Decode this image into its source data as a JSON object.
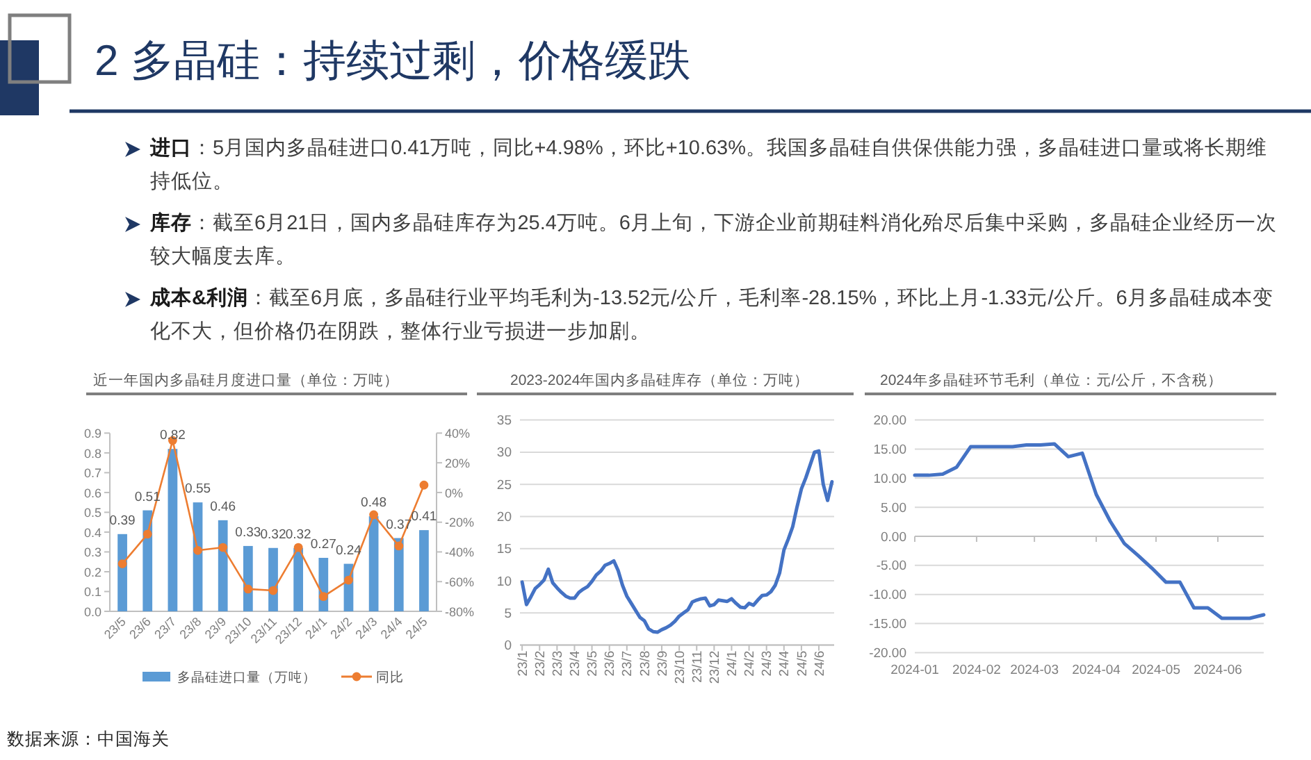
{
  "chart_data": [
    {
      "type": "other",
      "title": "2 多晶硅：持续过剩，价格缓跌",
      "annotations": [
        "进口：5月国内多晶硅进口0.41万吨，同比+4.98%，环比+10.63%。我国多晶硅自供保供能力强，多晶硅进口量或将长期维持低位。",
        "库存：截至6月21日，国内多晶硅库存为25.4万吨。6月上旬，下游企业前期硅料消化殆尽后集中采购，多晶硅企业经历一次较大幅度去库。",
        "成本&利润：截至6月底，多晶硅行业平均毛利为-13.52元/公斤，毛利率-28.15%，环比上月-1.33元/公斤。6月多晶硅成本变化不大，但价格仍在阴跌，整体行业亏损进一步加剧。"
      ]
    },
    {
      "type": "bar",
      "title": "近一年国内多晶硅月度进口量（单位：万吨）",
      "categories": [
        "23/5",
        "23/6",
        "23/7",
        "23/8",
        "23/9",
        "23/10",
        "23/11",
        "23/12",
        "24/1",
        "24/2",
        "24/3",
        "24/4",
        "24/5"
      ],
      "series": [
        {
          "name": "多晶硅进口量（万吨）",
          "color": "#5b9bd5",
          "values": [
            0.39,
            0.51,
            0.82,
            0.55,
            0.46,
            0.33,
            0.32,
            0.32,
            0.27,
            0.24,
            0.48,
            0.37,
            0.41
          ],
          "value_labels": [
            "0.39",
            "0.51",
            "0.82",
            "0.55",
            "0.46",
            "0.33",
            "0.32",
            "0.32",
            "0.27",
            "0.24",
            "0.48",
            "0.37",
            "0.41"
          ]
        },
        {
          "name": "同比",
          "type": "line",
          "axis": "y2",
          "color": "#ed7d31",
          "marker": "circle",
          "values": [
            -48,
            -28,
            35,
            -39,
            -37,
            -65,
            -66,
            -37,
            -70,
            -59,
            -15,
            -36,
            5
          ]
        }
      ],
      "ylim": [
        0,
        0.9
      ],
      "yticks": [
        {
          "value": 0,
          "label": "0.0"
        },
        0.1,
        0.2,
        0.3,
        0.4,
        0.5,
        0.6,
        0.7,
        0.8,
        0.9
      ],
      "y2lim": [
        -80,
        40
      ],
      "y2ticks": [
        {
          "value": -80,
          "label": "-80%"
        },
        {
          "value": -60,
          "label": "-60%"
        },
        {
          "value": -40,
          "label": "-40%"
        },
        {
          "value": -20,
          "label": "-20%"
        },
        {
          "value": 0,
          "label": "0%"
        },
        {
          "value": 20,
          "label": "20%"
        },
        {
          "value": 40,
          "label": "40%"
        }
      ],
      "legend": "bottom",
      "annotations": [
        "数据来源：中国海关"
      ]
    },
    {
      "type": "line",
      "title": "2023-2024年国内多晶硅库存（单位：万吨）",
      "categories": [
        "23/1",
        null,
        null,
        null,
        "23/2",
        null,
        null,
        null,
        "23/3",
        null,
        null,
        null,
        "23/4",
        null,
        null,
        null,
        "23/5",
        null,
        null,
        null,
        "23/6",
        null,
        null,
        null,
        "23/7",
        null,
        null,
        null,
        "23/8",
        null,
        null,
        null,
        "23/9",
        null,
        null,
        null,
        "23/10",
        null,
        null,
        null,
        "23/11",
        null,
        null,
        null,
        "23/12",
        null,
        null,
        null,
        "24/1",
        null,
        null,
        null,
        "24/2",
        null,
        null,
        null,
        "24/3",
        null,
        null,
        null,
        "24/4",
        null,
        null,
        null,
        "24/5",
        null,
        null,
        null,
        "24/6",
        null,
        null,
        null
      ],
      "color": "#4472c4",
      "values": [
        9.8,
        6.3,
        7.5,
        8.8,
        9.4,
        10.1,
        11.8,
        9.7,
        8.9,
        8.2,
        7.6,
        7.3,
        7.3,
        8.2,
        8.7,
        9.1,
        9.9,
        10.9,
        11.5,
        12.4,
        12.7,
        13.1,
        11.6,
        9.3,
        7.6,
        6.5,
        5.4,
        4.3,
        3.8,
        2.5,
        2.1,
        2.0,
        2.4,
        2.7,
        3.1,
        3.7,
        4.5,
        5.0,
        5.5,
        6.7,
        7.0,
        7.2,
        7.3,
        6.1,
        6.3,
        7.0,
        6.9,
        6.8,
        7.2,
        6.5,
        5.9,
        5.8,
        6.5,
        6.2,
        7.0,
        7.7,
        7.8,
        8.3,
        9.3,
        11.2,
        14.8,
        16.5,
        18.4,
        21.5,
        24.3,
        26.0,
        28.0,
        30.0,
        30.2,
        25.0,
        22.5,
        25.4
      ],
      "ylim": [
        0,
        35
      ],
      "yticks": [
        0,
        5,
        10,
        15,
        20,
        25,
        30,
        35
      ],
      "grid": "y"
    },
    {
      "type": "line",
      "title": "2024年多晶硅环节毛利（单位：元/公斤，不含税）",
      "x": [
        "2024-01-01",
        "2024-01-08",
        "2024-01-15",
        "2024-01-22",
        "2024-01-29",
        "2024-02-05",
        "2024-02-12",
        "2024-02-19",
        "2024-02-26",
        "2024-03-04",
        "2024-03-11",
        "2024-03-18",
        "2024-03-25",
        "2024-04-01",
        "2024-04-08",
        "2024-04-15",
        "2024-04-22",
        "2024-04-29",
        "2024-05-06",
        "2024-05-13",
        "2024-05-20",
        "2024-05-27",
        "2024-06-03",
        "2024-06-10",
        "2024-06-17",
        "2024-06-24"
      ],
      "color": "#4472c4",
      "values": [
        10.5,
        10.5,
        10.7,
        11.9,
        15.4,
        15.4,
        15.4,
        15.4,
        15.7,
        15.7,
        15.9,
        13.7,
        14.3,
        7.2,
        2.6,
        -1.2,
        -3.3,
        -5.5,
        -7.9,
        -7.9,
        -12.3,
        -12.3,
        -14.1,
        -14.1,
        -14.1,
        -13.5
      ],
      "xlim": [
        "2024-01-01",
        "2024-06-24"
      ],
      "xticks": [
        "2024-01",
        "2024-02",
        "2024-03",
        "2024-04",
        "2024-05",
        "2024-06"
      ],
      "ylim": [
        -20,
        20
      ],
      "yticks": [
        {
          "value": -20,
          "label": "-20.00"
        },
        {
          "value": -15,
          "label": "-15.00"
        },
        {
          "value": -10,
          "label": "-10.00"
        },
        {
          "value": -5,
          "label": "-5.00"
        },
        {
          "value": 0,
          "label": "0.00"
        },
        {
          "value": 5,
          "label": "5.00"
        },
        {
          "value": 10,
          "label": "10.00"
        },
        {
          "value": 15,
          "label": "15.00"
        },
        {
          "value": 20,
          "label": "20.00"
        }
      ],
      "grid": "y"
    }
  ]
}
